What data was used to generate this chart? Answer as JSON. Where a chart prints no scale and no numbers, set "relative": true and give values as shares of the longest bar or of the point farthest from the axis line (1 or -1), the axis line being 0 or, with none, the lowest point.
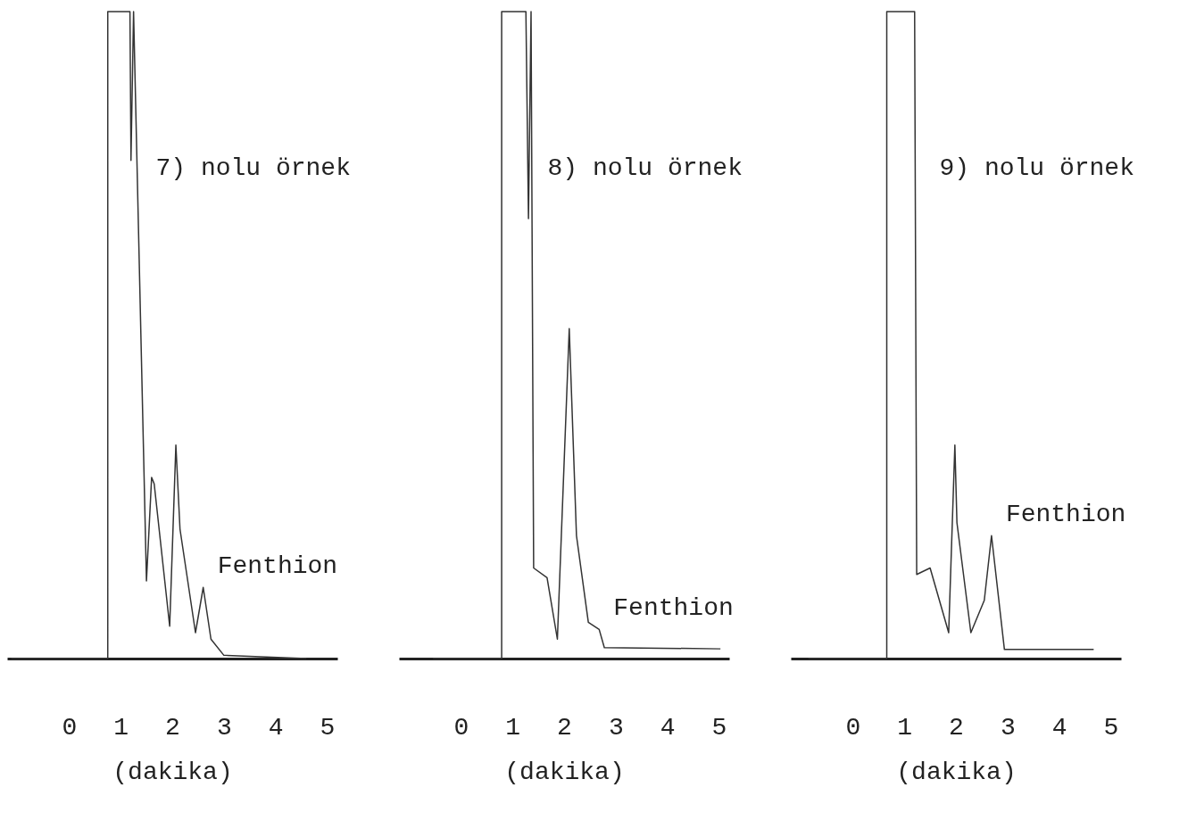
{
  "chart_data": [
    {
      "type": "line",
      "title": "7) nolu örnek",
      "xlabel": "(dakika)",
      "relative": true,
      "color": "#333333",
      "xlim": [
        -1.2,
        5.2
      ],
      "xticks": [
        0,
        1,
        2,
        3,
        4,
        5
      ],
      "x": [
        -1.12,
        0.75,
        0.75,
        1.18,
        1.2,
        1.25,
        1.5,
        1.6,
        1.65,
        1.95,
        2.07,
        2.15,
        2.45,
        2.6,
        2.75,
        3.0,
        4.6
      ],
      "values": [
        0,
        0,
        1,
        1,
        0.77,
        1,
        0.12,
        0.28,
        0.27,
        0.05,
        0.33,
        0.2,
        0.04,
        0.11,
        0.03,
        0.005,
        0
      ],
      "annotations": [
        {
          "text": "Fenthion",
          "x": 2.6,
          "y": 0.11
        }
      ]
    },
    {
      "type": "line",
      "title": "8) nolu örnek",
      "xlabel": "(dakika)",
      "relative": true,
      "color": "#333333",
      "xlim": [
        -1.2,
        5.2
      ],
      "xticks": [
        0,
        1,
        2,
        3,
        4,
        5
      ],
      "x": [
        -0.54,
        0.79,
        0.79,
        1.26,
        1.31,
        1.36,
        1.41,
        1.67,
        1.87,
        2.1,
        2.24,
        2.47,
        2.68,
        2.78,
        5.03
      ],
      "values": [
        0,
        0,
        1,
        1,
        0.68,
        1,
        0.14,
        0.125,
        0.03,
        0.51,
        0.19,
        0.056,
        0.045,
        0.017,
        0.015
      ],
      "annotations": [
        {
          "text": "Fenthion",
          "x": 2.68,
          "y": 0.045
        }
      ]
    },
    {
      "type": "line",
      "title": "9) nolu örnek",
      "xlabel": "(dakika)",
      "relative": true,
      "color": "#333333",
      "xlim": [
        -1.2,
        5.2
      ],
      "xticks": [
        0,
        1,
        2,
        3,
        4,
        5
      ],
      "x": [
        -0.86,
        0.66,
        0.66,
        1.2,
        1.24,
        1.5,
        1.86,
        1.98,
        2.02,
        2.29,
        2.55,
        2.69,
        2.94,
        4.67
      ],
      "values": [
        0,
        0,
        1,
        1,
        0.13,
        0.14,
        0.04,
        0.33,
        0.21,
        0.04,
        0.09,
        0.19,
        0.014,
        0.014
      ],
      "annotations": [
        {
          "text": "Fenthion",
          "x": 2.69,
          "y": 0.19
        }
      ]
    }
  ]
}
